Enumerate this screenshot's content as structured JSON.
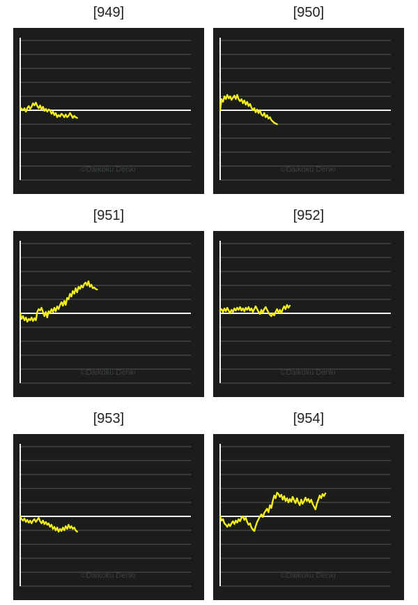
{
  "watermark": "©Daikoku Denki",
  "colors": {
    "background": "#1a1d1a",
    "grid": "#6a6a6a",
    "axis": "#f2f2f2",
    "line": "#f5ee1d",
    "watermark": "#3e423e"
  },
  "chart_data": [
    {
      "type": "line",
      "title": "[949]",
      "grid": true,
      "ylim": [
        -5,
        5
      ],
      "x": [
        0,
        1,
        2,
        3,
        4,
        5,
        6,
        7,
        8,
        9,
        10,
        11,
        12,
        13,
        14,
        15,
        16,
        17,
        18,
        19,
        20,
        21,
        22,
        23,
        24,
        25,
        26,
        27,
        28,
        29,
        30,
        31,
        32,
        33,
        34,
        35,
        36,
        37,
        38,
        39,
        40
      ],
      "y": [
        0.2,
        0.1,
        0.0,
        0.15,
        -0.1,
        0.15,
        0.3,
        0.1,
        0.25,
        0.5,
        0.35,
        0.55,
        0.3,
        0.15,
        0.35,
        0.05,
        0.25,
        -0.05,
        0.1,
        -0.1,
        0.05,
        0.0,
        -0.25,
        -0.1,
        -0.35,
        -0.2,
        -0.5,
        -0.35,
        -0.45,
        -0.25,
        -0.35,
        -0.5,
        -0.3,
        -0.5,
        -0.4,
        -0.2,
        -0.35,
        -0.55,
        -0.4,
        -0.5,
        -0.55
      ]
    },
    {
      "type": "line",
      "title": "[950]",
      "grid": true,
      "ylim": [
        -5,
        5
      ],
      "x": [
        0,
        1,
        2,
        3,
        4,
        5,
        6,
        7,
        8,
        9,
        10,
        11,
        12,
        13,
        14,
        15,
        16,
        17,
        18,
        19,
        20,
        21,
        22,
        23,
        24,
        25,
        26,
        27,
        28,
        29,
        30,
        31,
        32,
        33,
        34,
        35,
        36,
        37,
        38,
        39,
        40
      ],
      "y": [
        0.0,
        0.8,
        0.6,
        1.0,
        0.8,
        1.1,
        0.85,
        1.0,
        0.75,
        0.9,
        1.05,
        0.8,
        1.1,
        0.8,
        0.65,
        0.8,
        0.5,
        0.7,
        0.4,
        0.6,
        0.3,
        0.45,
        0.2,
        0.0,
        0.15,
        -0.15,
        0.05,
        -0.2,
        0.0,
        -0.3,
        -0.4,
        -0.2,
        -0.5,
        -0.35,
        -0.6,
        -0.5,
        -0.7,
        -0.8,
        -0.9,
        -0.95,
        -1.0
      ]
    },
    {
      "type": "line",
      "title": "[951]",
      "grid": true,
      "ylim": [
        -5,
        5
      ],
      "x": [
        0,
        1,
        2,
        3,
        4,
        5,
        6,
        7,
        8,
        9,
        10,
        11,
        12,
        13,
        14,
        15,
        16,
        17,
        18,
        19,
        20,
        21,
        22,
        23,
        24,
        25,
        26,
        27,
        28,
        29,
        30,
        31,
        32,
        33,
        34,
        35,
        36,
        37,
        38,
        39,
        40,
        41,
        42,
        43,
        44,
        45,
        46,
        47,
        48,
        49,
        50,
        51,
        52,
        53,
        54
      ],
      "y": [
        0.0,
        -0.4,
        -0.2,
        -0.5,
        -0.3,
        -0.6,
        -0.4,
        -0.5,
        -0.3,
        -0.55,
        -0.35,
        -0.5,
        0.1,
        0.3,
        0.2,
        0.4,
        0.1,
        -0.2,
        0.1,
        -0.3,
        0.15,
        0.0,
        0.3,
        0.1,
        0.4,
        0.15,
        0.5,
        0.3,
        0.6,
        0.8,
        0.55,
        0.9,
        0.6,
        1.1,
        1.0,
        1.4,
        1.2,
        1.6,
        1.4,
        1.8,
        1.5,
        1.9,
        1.75,
        2.0,
        1.85,
        2.1,
        2.2,
        2.0,
        2.3,
        1.9,
        2.05,
        1.8,
        1.85,
        1.75,
        1.7
      ]
    },
    {
      "type": "line",
      "title": "[952]",
      "grid": true,
      "ylim": [
        -5,
        5
      ],
      "x": [
        0,
        1,
        2,
        3,
        4,
        5,
        6,
        7,
        8,
        9,
        10,
        11,
        12,
        13,
        14,
        15,
        16,
        17,
        18,
        19,
        20,
        21,
        22,
        23,
        24,
        25,
        26,
        27,
        28,
        29,
        30,
        31,
        32,
        33,
        34,
        35,
        36,
        37,
        38,
        39,
        40,
        41,
        42,
        43,
        44,
        45,
        46,
        47,
        48,
        49
      ],
      "y": [
        0.2,
        0.3,
        0.1,
        0.35,
        0.15,
        0.4,
        0.2,
        0.0,
        0.25,
        0.1,
        0.35,
        0.2,
        0.4,
        0.25,
        0.45,
        0.2,
        0.35,
        0.15,
        0.4,
        0.25,
        0.45,
        0.2,
        0.35,
        0.1,
        0.3,
        0.5,
        0.3,
        0.1,
        -0.05,
        0.25,
        0.05,
        0.3,
        0.45,
        0.25,
        0.05,
        -0.1,
        -0.2,
        0.0,
        -0.15,
        0.1,
        0.3,
        0.05,
        0.25,
        0.0,
        0.3,
        0.5,
        0.3,
        0.6,
        0.4,
        0.55
      ]
    },
    {
      "type": "line",
      "title": "[953]",
      "grid": true,
      "ylim": [
        -5,
        5
      ],
      "x": [
        0,
        1,
        2,
        3,
        4,
        5,
        6,
        7,
        8,
        9,
        10,
        11,
        12,
        13,
        14,
        15,
        16,
        17,
        18,
        19,
        20,
        21,
        22,
        23,
        24,
        25,
        26,
        27,
        28,
        29,
        30,
        31,
        32,
        33,
        34,
        35,
        36,
        37,
        38,
        39,
        40
      ],
      "y": [
        0.0,
        -0.2,
        -0.3,
        -0.15,
        -0.4,
        -0.25,
        -0.45,
        -0.3,
        -0.5,
        -0.3,
        -0.2,
        -0.4,
        -0.25,
        -0.1,
        -0.35,
        -0.5,
        -0.3,
        -0.55,
        -0.4,
        -0.6,
        -0.5,
        -0.75,
        -0.6,
        -0.9,
        -0.75,
        -1.0,
        -0.8,
        -1.1,
        -0.9,
        -1.05,
        -0.8,
        -1.0,
        -0.7,
        -0.9,
        -0.6,
        -0.85,
        -0.7,
        -0.9,
        -0.8,
        -1.0,
        -1.1
      ]
    },
    {
      "type": "line",
      "title": "[954]",
      "grid": true,
      "ylim": [
        -5,
        5
      ],
      "x": [
        0,
        1,
        2,
        3,
        4,
        5,
        6,
        7,
        8,
        9,
        10,
        11,
        12,
        13,
        14,
        15,
        16,
        17,
        18,
        19,
        20,
        21,
        22,
        23,
        24,
        25,
        26,
        27,
        28,
        29,
        30,
        31,
        32,
        33,
        34,
        35,
        36,
        37,
        38,
        39,
        40,
        41,
        42,
        43,
        44,
        45,
        46,
        47,
        48,
        49,
        50,
        51,
        52,
        53,
        54,
        55,
        56,
        57,
        58,
        59,
        60,
        61,
        62,
        63,
        64,
        65,
        66,
        67,
        68,
        69,
        70,
        71,
        72,
        73,
        74
      ],
      "y": [
        0.0,
        -0.3,
        -0.2,
        -0.5,
        -0.6,
        -0.75,
        -0.55,
        -0.7,
        -0.5,
        -0.35,
        -0.55,
        -0.3,
        -0.45,
        -0.2,
        -0.35,
        -0.1,
        0.0,
        -0.25,
        -0.1,
        -0.4,
        -0.6,
        -0.5,
        -0.8,
        -0.95,
        -1.05,
        -0.7,
        -0.4,
        -0.2,
        0.0,
        0.15,
        -0.05,
        0.25,
        0.4,
        0.55,
        0.3,
        0.8,
        0.6,
        1.1,
        1.5,
        1.3,
        1.7,
        1.6,
        1.4,
        1.55,
        1.2,
        1.45,
        1.1,
        1.3,
        1.0,
        1.25,
        1.05,
        1.4,
        1.15,
        0.95,
        1.3,
        1.0,
        0.8,
        1.2,
        0.9,
        1.1,
        1.35,
        1.1,
        1.25,
        1.0,
        1.2,
        0.9,
        0.7,
        0.5,
        0.9,
        1.2,
        1.5,
        1.3,
        1.6,
        1.45,
        1.65
      ]
    }
  ]
}
